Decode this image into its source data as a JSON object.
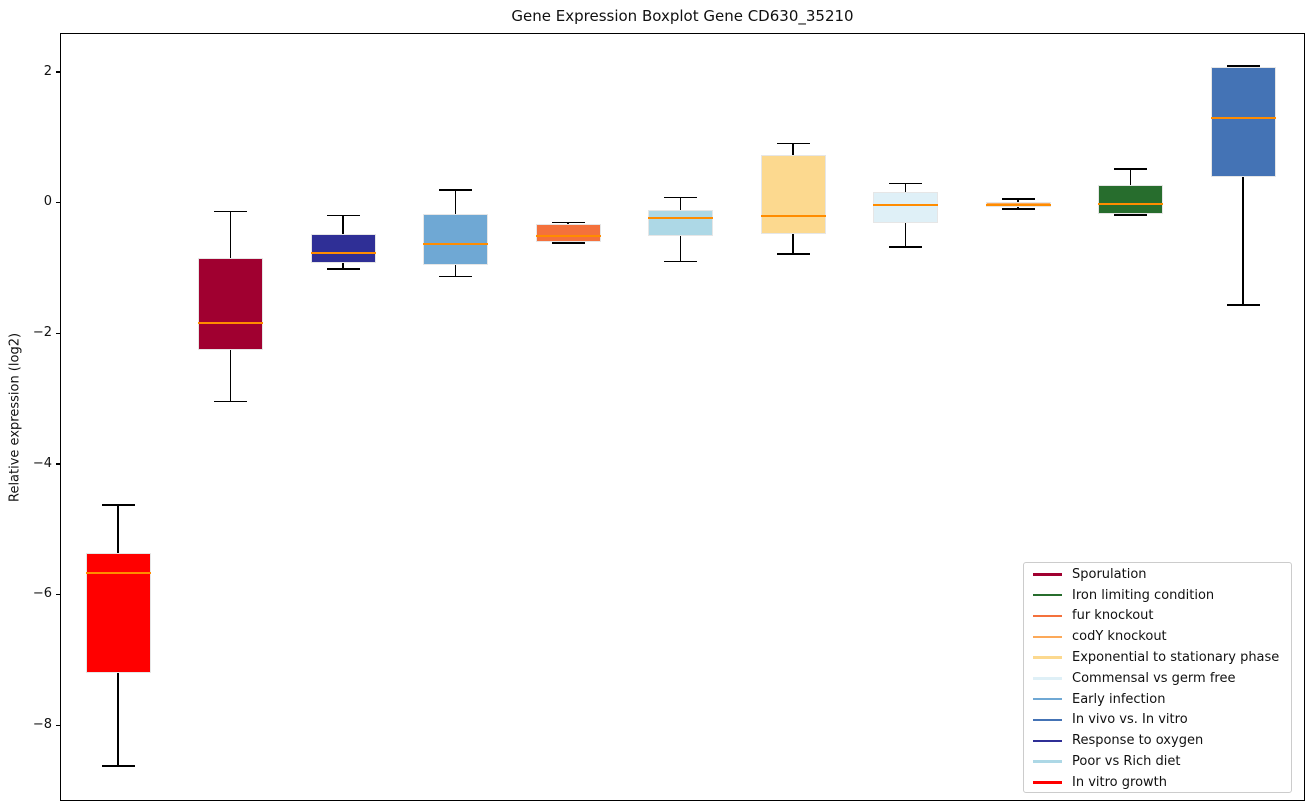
{
  "chart_data": {
    "type": "boxplot",
    "title": "Gene Expression Boxplot Gene CD630_35210",
    "ylabel": "Relative expression (log2)",
    "xlabel": "",
    "yticks": [
      2,
      0,
      -2,
      -4,
      -6,
      -8
    ],
    "ylim": [
      -9.16,
      2.6
    ],
    "grid": false,
    "legend_position": "lower right",
    "median_color": "#FF8C00",
    "categories": [
      "In vitro growth",
      "Sporulation",
      "Response to oxygen",
      "Early infection",
      "fur knockout",
      "Poor vs Rich diet",
      "Exponential to stationary phase",
      "Commensal vs germ free",
      "codY knockout",
      "Iron limiting condition",
      "In vivo vs. In vitro"
    ],
    "boxes": [
      {
        "label": "In vitro growth",
        "color": "#FF0000",
        "whisker_low": -8.61,
        "q1": -7.19,
        "median": -5.66,
        "q3": -5.35,
        "whisker_high": -4.61
      },
      {
        "label": "Sporulation",
        "color": "#A00030",
        "whisker_low": -3.03,
        "q1": -2.24,
        "median": -1.82,
        "q3": -0.83,
        "whisker_high": -0.12
      },
      {
        "label": "Response to oxygen",
        "color": "#2F2F96",
        "whisker_low": -1.0,
        "q1": -0.91,
        "median": -0.76,
        "q3": -0.46,
        "whisker_high": -0.18
      },
      {
        "label": "Early infection",
        "color": "#6FA8D4",
        "whisker_low": -1.11,
        "q1": -0.94,
        "median": -0.62,
        "q3": -0.15,
        "whisker_high": 0.21
      },
      {
        "label": "fur knockout",
        "color": "#F4713C",
        "whisker_low": -0.6,
        "q1": -0.58,
        "median": -0.49,
        "q3": -0.31,
        "whisker_high": -0.29
      },
      {
        "label": "Poor vs Rich diet",
        "color": "#ADD8E6",
        "whisker_low": -0.88,
        "q1": -0.49,
        "median": -0.22,
        "q3": -0.1,
        "whisker_high": 0.1
      },
      {
        "label": "Exponential to stationary phase",
        "color": "#FCD98F",
        "whisker_low": -0.77,
        "q1": -0.47,
        "median": -0.18,
        "q3": 0.74,
        "whisker_high": 0.92
      },
      {
        "label": "Commensal vs germ free",
        "color": "#DFF0F7",
        "whisker_low": -0.66,
        "q1": -0.29,
        "median": -0.02,
        "q3": 0.18,
        "whisker_high": 0.31
      },
      {
        "label": "codY knockout",
        "color": "#FCA959",
        "whisker_low": -0.08,
        "q1": -0.05,
        "median": -0.02,
        "q3": 0.03,
        "whisker_high": 0.07
      },
      {
        "label": "Iron limiting condition",
        "color": "#276D2D",
        "whisker_low": -0.17,
        "q1": -0.15,
        "median": 0.0,
        "q3": 0.29,
        "whisker_high": 0.53
      },
      {
        "label": "In vivo vs. In vitro",
        "color": "#4473B5",
        "whisker_low": -1.55,
        "q1": 0.41,
        "median": 1.31,
        "q3": 2.09,
        "whisker_high": 2.11
      }
    ],
    "legend": [
      {
        "label": "Sporulation",
        "color": "#A00030"
      },
      {
        "label": "Iron limiting condition",
        "color": "#276D2D"
      },
      {
        "label": "fur knockout",
        "color": "#F4713C"
      },
      {
        "label": "codY knockout",
        "color": "#FCA959"
      },
      {
        "label": "Exponential to stationary phase",
        "color": "#FCD98F"
      },
      {
        "label": "Commensal vs germ free",
        "color": "#DFF0F7"
      },
      {
        "label": "Early infection",
        "color": "#6FA8D4"
      },
      {
        "label": "In vivo vs. In vitro",
        "color": "#4473B5"
      },
      {
        "label": "Response to oxygen",
        "color": "#2F2F96"
      },
      {
        "label": "Poor vs Rich diet",
        "color": "#ADD8E6"
      },
      {
        "label": "In vitro growth",
        "color": "#FF0000"
      }
    ]
  }
}
